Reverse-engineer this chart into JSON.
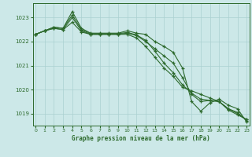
{
  "title": "Graphe pression niveau de la mer (hPa)",
  "bg_color": "#cce8e8",
  "grid_color": "#aad0d0",
  "line_color": "#2d6a2d",
  "xlim": [
    -0.3,
    23.3
  ],
  "ylim": [
    1018.5,
    1023.6
  ],
  "yticks": [
    1019,
    1020,
    1021,
    1022,
    1023
  ],
  "xticks": [
    0,
    1,
    2,
    3,
    4,
    5,
    6,
    7,
    8,
    9,
    10,
    11,
    12,
    13,
    14,
    15,
    16,
    17,
    18,
    19,
    20,
    21,
    22,
    23
  ],
  "series": [
    [
      1022.3,
      1022.45,
      1022.6,
      1022.55,
      1023.25,
      1022.55,
      1022.35,
      1022.35,
      1022.35,
      1022.35,
      1022.45,
      1022.35,
      1022.3,
      1022.0,
      1021.8,
      1021.55,
      1020.9,
      1019.5,
      1019.1,
      1019.45,
      1019.6,
      1019.35,
      1019.2,
      1018.65
    ],
    [
      1022.3,
      1022.45,
      1022.55,
      1022.5,
      1023.0,
      1022.45,
      1022.3,
      1022.3,
      1022.3,
      1022.3,
      1022.35,
      1022.25,
      1022.0,
      1021.7,
      1021.4,
      1021.1,
      1020.5,
      1019.8,
      1019.5,
      1019.55,
      1019.5,
      1019.2,
      1019.0,
      1018.75
    ],
    [
      1022.3,
      1022.45,
      1022.55,
      1022.5,
      1022.8,
      1022.4,
      1022.3,
      1022.3,
      1022.3,
      1022.3,
      1022.3,
      1022.15,
      1021.8,
      1021.35,
      1020.9,
      1020.55,
      1020.1,
      1019.95,
      1019.8,
      1019.65,
      1019.5,
      1019.15,
      1018.95,
      1018.75
    ],
    [
      1022.3,
      1022.45,
      1022.6,
      1022.55,
      1023.1,
      1022.5,
      1022.33,
      1022.33,
      1022.33,
      1022.33,
      1022.38,
      1022.28,
      1022.05,
      1021.6,
      1021.1,
      1020.7,
      1020.2,
      1019.85,
      1019.6,
      1019.55,
      1019.5,
      1019.2,
      1019.05,
      1018.7
    ]
  ]
}
